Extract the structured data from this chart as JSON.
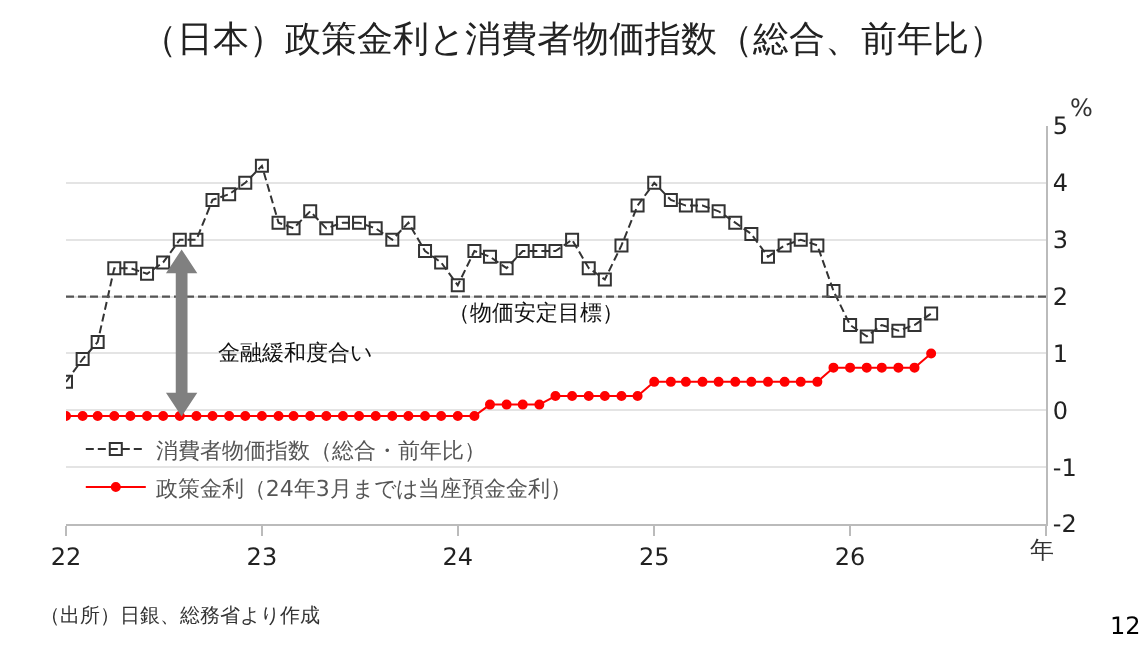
{
  "chart_data": {
    "type": "line",
    "title": "（日本）政策金利と消費者物価指数（総合、前年比）",
    "ylabel": "%",
    "xlabel": "年",
    "x": [
      "2022-01",
      "2022-02",
      "2022-03",
      "2022-04",
      "2022-05",
      "2022-06",
      "2022-07",
      "2022-08",
      "2022-09",
      "2022-10",
      "2022-11",
      "2022-12",
      "2023-01",
      "2023-02",
      "2023-03",
      "2023-04",
      "2023-05",
      "2023-06",
      "2023-07",
      "2023-08",
      "2023-09",
      "2023-10",
      "2023-11",
      "2023-12",
      "2024-01",
      "2024-02",
      "2024-03",
      "2024-04",
      "2024-05",
      "2024-06",
      "2024-07",
      "2024-08",
      "2024-09",
      "2024-10",
      "2024-11",
      "2024-12",
      "2025-01",
      "2025-02",
      "2025-03",
      "2025-04",
      "2025-05",
      "2025-06",
      "2025-07",
      "2025-08",
      "2025-09",
      "2025-10",
      "2025-11",
      "2025-12",
      "2026-01",
      "2026-02",
      "2026-03",
      "2026-04",
      "2026-05",
      "2026-06"
    ],
    "series": [
      {
        "name": "消費者物価指数（総合・前年比）",
        "color": "#333333",
        "marker": "square",
        "line_style": "dashed",
        "values": [
          0.5,
          0.9,
          1.2,
          2.5,
          2.5,
          2.4,
          2.6,
          3.0,
          3.0,
          3.7,
          3.8,
          4.0,
          4.3,
          3.3,
          3.2,
          3.5,
          3.2,
          3.3,
          3.3,
          3.2,
          3.0,
          3.3,
          2.8,
          2.6,
          2.2,
          2.8,
          2.7,
          2.5,
          2.8,
          2.8,
          2.8,
          3.0,
          2.5,
          2.3,
          2.9,
          3.6,
          4.0,
          3.7,
          3.6,
          3.6,
          3.5,
          3.3,
          3.1,
          2.7,
          2.9,
          3.0,
          2.9,
          2.1,
          1.5,
          1.3,
          1.5,
          1.4,
          1.5,
          1.7
        ]
      },
      {
        "name": "政策金利（24年3月までは当座預金金利）",
        "color": "#ff0000",
        "marker": "circle",
        "line_style": "solid",
        "values": [
          -0.1,
          -0.1,
          -0.1,
          -0.1,
          -0.1,
          -0.1,
          -0.1,
          -0.1,
          -0.1,
          -0.1,
          -0.1,
          -0.1,
          -0.1,
          -0.1,
          -0.1,
          -0.1,
          -0.1,
          -0.1,
          -0.1,
          -0.1,
          -0.1,
          -0.1,
          -0.1,
          -0.1,
          -0.1,
          -0.1,
          0.1,
          0.1,
          0.1,
          0.1,
          0.25,
          0.25,
          0.25,
          0.25,
          0.25,
          0.25,
          0.5,
          0.5,
          0.5,
          0.5,
          0.5,
          0.5,
          0.5,
          0.5,
          0.5,
          0.5,
          0.5,
          0.75,
          0.75,
          0.75,
          0.75,
          0.75,
          0.75,
          1.0
        ]
      }
    ],
    "xlim": [
      "2022-01-01",
      "2027-01-01"
    ],
    "xticks": [
      {
        "value": "2022-01-01",
        "label": "22"
      },
      {
        "value": "2023-01-01",
        "label": "23"
      },
      {
        "value": "2024-01-01",
        "label": "24"
      },
      {
        "value": "2025-01-01",
        "label": "25"
      },
      {
        "value": "2026-01-01",
        "label": "26"
      },
      {
        "value": "2027-01-01",
        "label": null
      }
    ],
    "ylim": [
      -2,
      5
    ],
    "yticks": [
      -2,
      -1,
      0,
      1,
      2,
      3,
      4,
      5
    ],
    "grid": "y",
    "legend": "bottom left",
    "ref_lines": [
      {
        "axis": "y",
        "value": 2,
        "label": "（物価安定目標）",
        "color": "#555555",
        "line_style": "dashed"
      }
    ],
    "annotations": [
      "金融緩和度合い",
      "（出所）日銀、総務省より作成",
      "12"
    ]
  }
}
